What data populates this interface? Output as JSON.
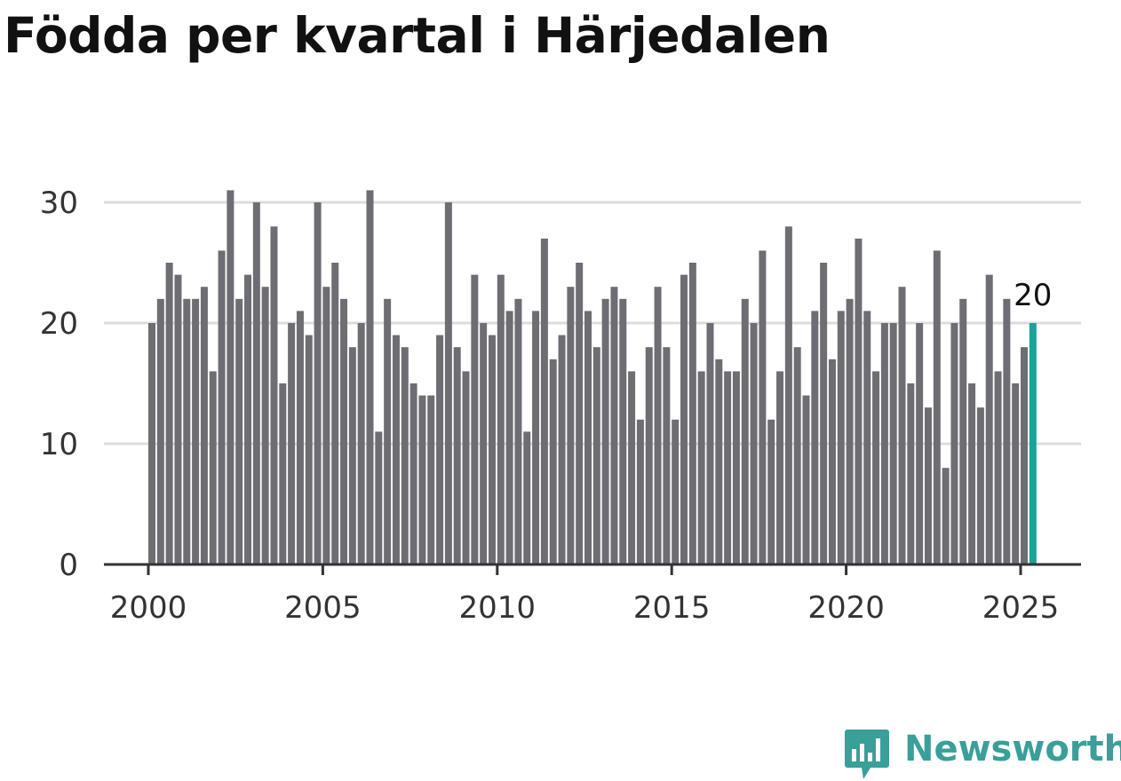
{
  "title": "Födda per kvartal i Härjedalen",
  "brand": {
    "name": "Newsworthy"
  },
  "colors": {
    "bar": "#6e6d73",
    "highlight": "#1aa39a",
    "grid": "#dcdcdc",
    "axis": "#333333",
    "brand": "#3a9f99"
  },
  "chart_data": {
    "type": "bar",
    "title": "Födda per kvartal i Härjedalen",
    "xlabel": "",
    "ylabel": "",
    "ylim": [
      0,
      30
    ],
    "yticks": [
      0,
      10,
      20,
      30
    ],
    "xticks": [
      "2000",
      "2005",
      "2010",
      "2015",
      "2020",
      "2025"
    ],
    "x_start": "2000 Q1",
    "x_end": "2025 Q2",
    "grid": true,
    "highlight_label": "20",
    "values": [
      20,
      22,
      25,
      24,
      22,
      22,
      23,
      16,
      26,
      31,
      22,
      24,
      30,
      23,
      28,
      15,
      20,
      21,
      19,
      30,
      23,
      25,
      22,
      18,
      20,
      31,
      11,
      22,
      19,
      18,
      15,
      14,
      14,
      19,
      30,
      18,
      16,
      24,
      20,
      19,
      24,
      21,
      22,
      11,
      21,
      27,
      17,
      19,
      23,
      25,
      21,
      18,
      22,
      23,
      22,
      16,
      12,
      18,
      23,
      18,
      12,
      24,
      25,
      16,
      20,
      17,
      16,
      16,
      22,
      20,
      26,
      12,
      16,
      28,
      18,
      14,
      21,
      25,
      17,
      21,
      22,
      27,
      21,
      16,
      20,
      20,
      23,
      15,
      20,
      13,
      26,
      8,
      20,
      22,
      15,
      13,
      24,
      16,
      22,
      15,
      18,
      20
    ]
  }
}
